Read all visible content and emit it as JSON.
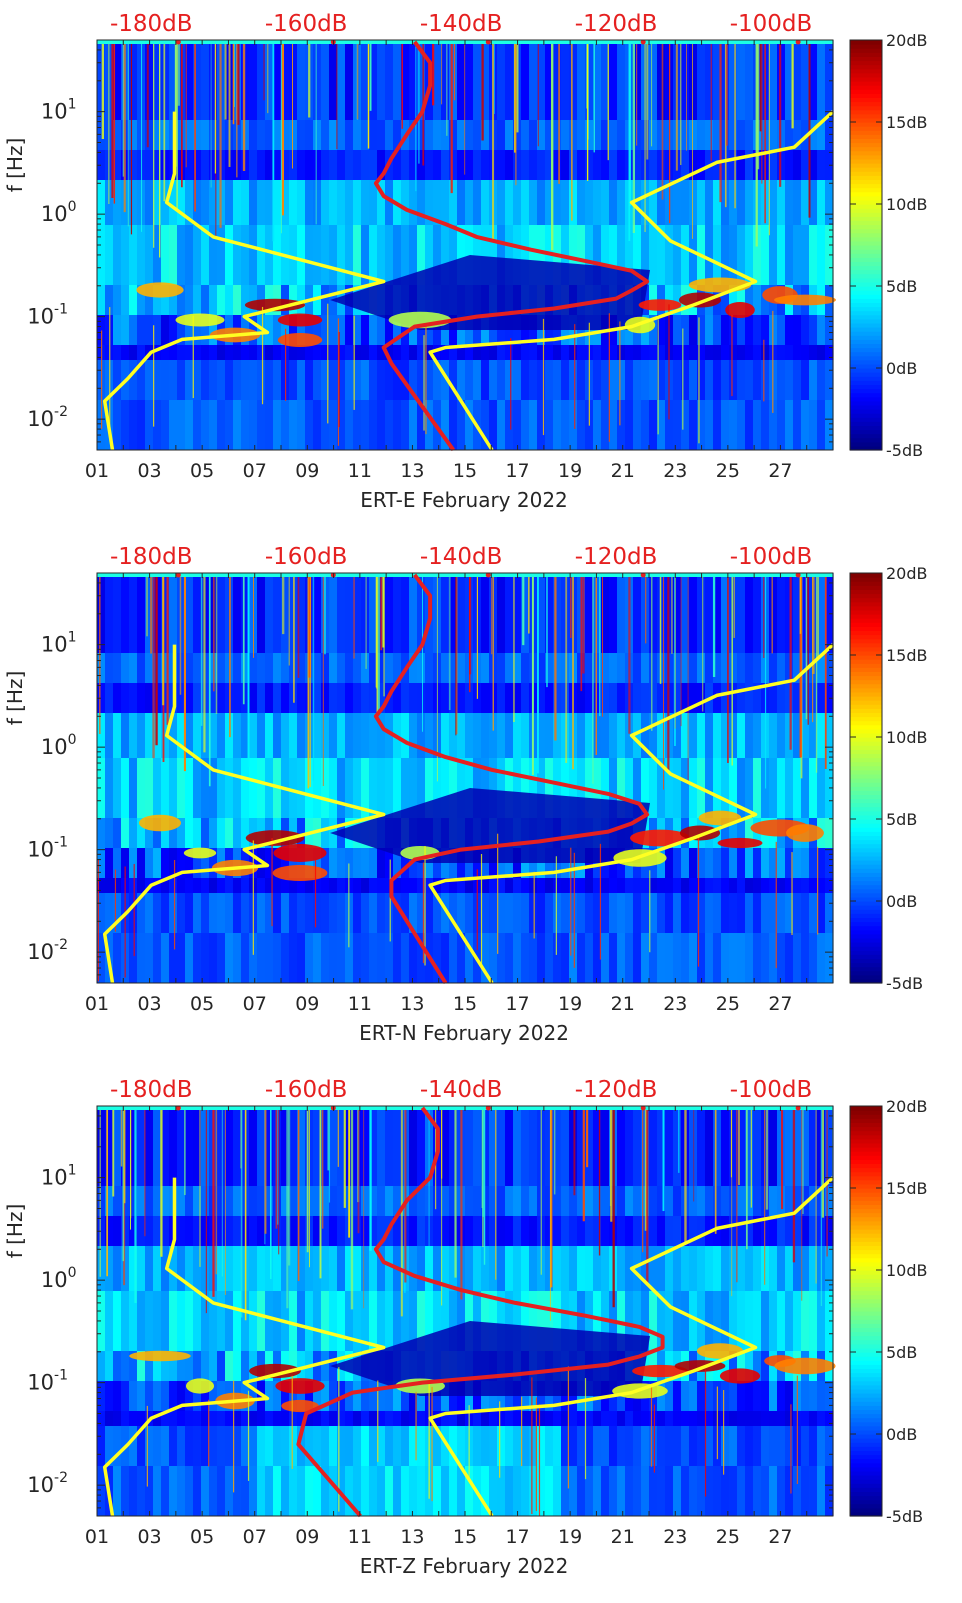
{
  "chart_data": [
    {
      "type": "heatmap",
      "title": "",
      "xlabel": "ERT-E February 2022",
      "ylabel": "f [Hz]",
      "x_ticks": [
        "01",
        "03",
        "05",
        "07",
        "09",
        "11",
        "13",
        "15",
        "17",
        "19",
        "21",
        "23",
        "25",
        "27"
      ],
      "x_range_days": [
        1,
        29
      ],
      "y_scale": "log",
      "y_ticks": [
        {
          "value": 10,
          "base": "10",
          "exp": "1"
        },
        {
          "value": 1,
          "base": "10",
          "exp": "0"
        },
        {
          "value": 0.1,
          "base": "10",
          "exp": "-1"
        },
        {
          "value": 0.01,
          "base": "10",
          "exp": "-2"
        }
      ],
      "y_range_hz": [
        0.005,
        50
      ],
      "top_axis_labels": [
        "-180dB",
        "-160dB",
        "-140dB",
        "-120dB",
        "-100dB"
      ],
      "top_axis_range_db": [
        -187,
        -92
      ],
      "colorbar_labels": [
        "20dB",
        "15dB",
        "10dB",
        "5dB",
        "0dB",
        "-5dB"
      ],
      "colorbar_range_db": [
        -5,
        20
      ],
      "series": [
        {
          "color": "#e52020",
          "x_db": [
            -146,
            -144,
            -144,
            -145,
            -147,
            -149,
            -150,
            -151,
            -150,
            -147,
            -142,
            -138,
            -131,
            -124,
            -118,
            -116,
            -118,
            -120,
            -128,
            -138,
            -146,
            -150,
            -149,
            -141
          ],
          "y_hz": [
            48,
            30,
            18,
            10,
            6,
            3.5,
            2.5,
            2,
            1.5,
            1.1,
            0.8,
            0.6,
            0.45,
            0.35,
            0.28,
            0.22,
            0.18,
            0.15,
            0.12,
            0.1,
            0.08,
            0.05,
            0.035,
            0.005
          ]
        },
        {
          "color": "#ffff22",
          "x_db": [
            -177,
            -177,
            -178,
            -172,
            -150,
            -168,
            -165,
            -176,
            -180,
            -183,
            -186,
            -185
          ],
          "y_hz": [
            10,
            2.5,
            1.3,
            0.6,
            0.22,
            0.1,
            0.07,
            0.06,
            0.045,
            0.025,
            0.015,
            0.005
          ]
        },
        {
          "color": "#ffff22",
          "x_db": [
            -92,
            -97,
            -107,
            -118,
            -113,
            -102,
            -110,
            -118,
            -128,
            -142,
            -144,
            -136
          ],
          "y_hz": [
            10,
            4.5,
            3.2,
            1.3,
            0.55,
            0.22,
            0.13,
            0.08,
            0.06,
            0.05,
            0.045,
            0.005
          ]
        }
      ]
    },
    {
      "type": "heatmap",
      "title": "",
      "xlabel": "ERT-N February 2022",
      "ylabel": "f [Hz]",
      "x_ticks": [
        "01",
        "03",
        "05",
        "07",
        "09",
        "11",
        "13",
        "15",
        "17",
        "19",
        "21",
        "23",
        "25",
        "27"
      ],
      "x_range_days": [
        1,
        29
      ],
      "y_scale": "log",
      "y_ticks": [
        {
          "value": 10,
          "base": "10",
          "exp": "1"
        },
        {
          "value": 1,
          "base": "10",
          "exp": "0"
        },
        {
          "value": 0.1,
          "base": "10",
          "exp": "-1"
        },
        {
          "value": 0.01,
          "base": "10",
          "exp": "-2"
        }
      ],
      "y_range_hz": [
        0.005,
        50
      ],
      "top_axis_labels": [
        "-180dB",
        "-160dB",
        "-140dB",
        "-120dB",
        "-100dB"
      ],
      "top_axis_range_db": [
        -187,
        -92
      ],
      "colorbar_labels": [
        "20dB",
        "15dB",
        "10dB",
        "5dB",
        "0dB",
        "-5dB"
      ],
      "colorbar_range_db": [
        -5,
        20
      ],
      "series": [
        {
          "color": "#e52020",
          "x_db": [
            -146,
            -144,
            -144,
            -145,
            -147,
            -149,
            -150,
            -151,
            -150,
            -147,
            -142,
            -136,
            -128,
            -121,
            -117,
            -116,
            -118,
            -121,
            -130,
            -140,
            -146,
            -149,
            -149,
            -142
          ],
          "y_hz": [
            48,
            30,
            18,
            10,
            6,
            3.5,
            2.5,
            2,
            1.5,
            1.1,
            0.8,
            0.6,
            0.45,
            0.35,
            0.28,
            0.22,
            0.18,
            0.15,
            0.12,
            0.1,
            0.08,
            0.05,
            0.035,
            0.005
          ]
        },
        {
          "color": "#ffff22",
          "x_db": [
            -177,
            -177,
            -178,
            -172,
            -150,
            -168,
            -165,
            -176,
            -180,
            -183,
            -186,
            -185
          ],
          "y_hz": [
            10,
            2.5,
            1.3,
            0.6,
            0.22,
            0.1,
            0.07,
            0.06,
            0.045,
            0.025,
            0.015,
            0.005
          ]
        },
        {
          "color": "#ffff22",
          "x_db": [
            -92,
            -97,
            -107,
            -118,
            -113,
            -102,
            -110,
            -118,
            -128,
            -142,
            -144,
            -136
          ],
          "y_hz": [
            10,
            4.5,
            3.2,
            1.3,
            0.55,
            0.22,
            0.13,
            0.08,
            0.06,
            0.05,
            0.045,
            0.005
          ]
        }
      ]
    },
    {
      "type": "heatmap",
      "title": "",
      "xlabel": "ERT-Z February 2022",
      "ylabel": "f [Hz]",
      "x_ticks": [
        "01",
        "03",
        "05",
        "07",
        "09",
        "11",
        "13",
        "15",
        "17",
        "19",
        "21",
        "23",
        "25",
        "27"
      ],
      "x_range_days": [
        1,
        29
      ],
      "y_scale": "log",
      "y_ticks": [
        {
          "value": 10,
          "base": "10",
          "exp": "1"
        },
        {
          "value": 1,
          "base": "10",
          "exp": "0"
        },
        {
          "value": 0.1,
          "base": "10",
          "exp": "-1"
        },
        {
          "value": 0.01,
          "base": "10",
          "exp": "-2"
        }
      ],
      "y_range_hz": [
        0.005,
        50
      ],
      "top_axis_labels": [
        "-180dB",
        "-160dB",
        "-140dB",
        "-120dB",
        "-100dB"
      ],
      "top_axis_range_db": [
        -187,
        -92
      ],
      "colorbar_labels": [
        "20dB",
        "15dB",
        "10dB",
        "5dB",
        "0dB",
        "-5dB"
      ],
      "colorbar_range_db": [
        -5,
        20
      ],
      "series": [
        {
          "color": "#e52020",
          "x_db": [
            -145,
            -143,
            -143,
            -144,
            -147,
            -149,
            -150,
            -151,
            -150,
            -146,
            -140,
            -133,
            -124,
            -117,
            -114,
            -114,
            -117,
            -121,
            -133,
            -145,
            -154,
            -160,
            -161,
            -153
          ],
          "y_hz": [
            48,
            30,
            18,
            10,
            6,
            3.5,
            2.5,
            2,
            1.5,
            1.1,
            0.8,
            0.6,
            0.45,
            0.35,
            0.28,
            0.22,
            0.18,
            0.15,
            0.12,
            0.1,
            0.08,
            0.05,
            0.025,
            0.005
          ]
        },
        {
          "color": "#ffff22",
          "x_db": [
            -177,
            -177,
            -178,
            -172,
            -150,
            -168,
            -165,
            -176,
            -180,
            -183,
            -186,
            -185
          ],
          "y_hz": [
            10,
            2.5,
            1.3,
            0.6,
            0.22,
            0.1,
            0.07,
            0.06,
            0.045,
            0.025,
            0.015,
            0.005
          ]
        },
        {
          "color": "#ffff22",
          "x_db": [
            -92,
            -97,
            -107,
            -118,
            -113,
            -102,
            -110,
            -118,
            -128,
            -142,
            -144,
            -136
          ],
          "y_hz": [
            10,
            4.5,
            3.2,
            1.3,
            0.55,
            0.22,
            0.13,
            0.08,
            0.06,
            0.05,
            0.045,
            0.005
          ]
        }
      ]
    }
  ]
}
